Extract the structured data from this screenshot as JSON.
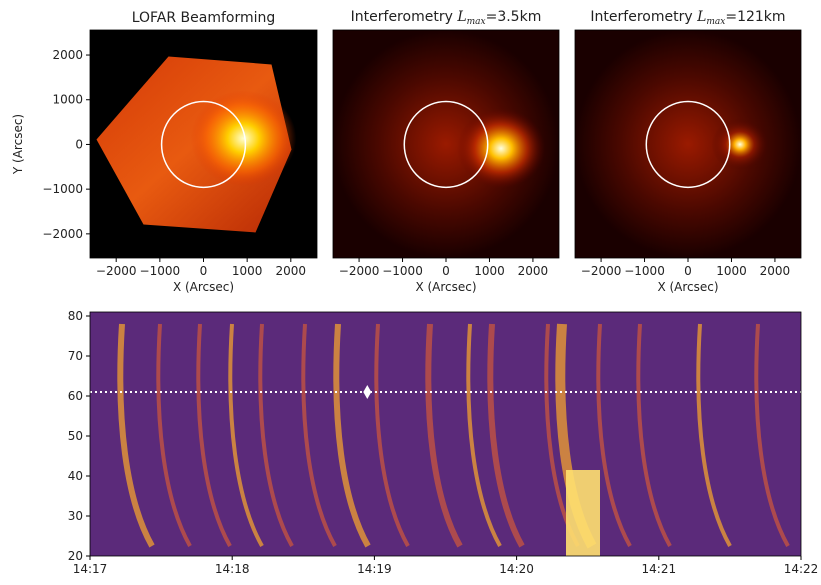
{
  "chart_data": [
    {
      "type": "image",
      "title": "LOFAR Beamforming",
      "xlabel": "X (Arcsec)",
      "ylabel": "Y (Arcsec)",
      "xlim": [
        -2600,
        2600
      ],
      "ylim": [
        -2540,
        2560
      ],
      "xticks": [
        {
          "value": -2000,
          "label": "−2000"
        },
        {
          "value": -1000,
          "label": "−1000"
        },
        0,
        1000,
        2000
      ],
      "yticks": [
        {
          "value": -2000,
          "label": "−2000"
        },
        {
          "value": -1000,
          "label": "−1000"
        },
        0,
        1000,
        2000
      ],
      "circle_radius": 960
    },
    {
      "type": "image",
      "title": "Interferometry",
      "lmax_symbol": "L",
      "lmax_sub": "max",
      "lmax_value": "=3.5km",
      "xlabel": "X (Arcsec)",
      "xlim": [
        -2600,
        2600
      ],
      "ylim": [
        -2540,
        2560
      ],
      "xticks": [
        {
          "value": -2000,
          "label": "−2000"
        },
        {
          "value": -1000,
          "label": "−1000"
        },
        0,
        1000,
        2000
      ],
      "circle_radius": 960
    },
    {
      "type": "image",
      "title": "Interferometry",
      "lmax_symbol": "L",
      "lmax_sub": "max",
      "lmax_value": "=121km",
      "xlabel": "X (Arcsec)",
      "xlim": [
        -2600,
        2600
      ],
      "ylim": [
        -2540,
        2560
      ],
      "xticks": [
        {
          "value": -2000,
          "label": "−2000"
        },
        {
          "value": -1000,
          "label": "−1000"
        },
        0,
        1000,
        2000
      ],
      "circle_radius": 960
    },
    {
      "type": "spectrogram",
      "xlim": [
        857,
        862
      ],
      "ylim": [
        20,
        81
      ],
      "xticks": [
        {
          "value": 857,
          "label": "14:17"
        },
        {
          "value": 858,
          "label": "14:18"
        },
        {
          "value": 859,
          "label": "14:19"
        },
        {
          "value": 860,
          "label": "14:20"
        },
        {
          "value": 861,
          "label": "14:21"
        },
        {
          "value": 862,
          "label": "14:22"
        }
      ],
      "yticks": [
        20,
        30,
        40,
        50,
        60,
        70,
        80
      ],
      "hline": 61,
      "marker": {
        "x": 858.95,
        "y": 61
      }
    }
  ]
}
